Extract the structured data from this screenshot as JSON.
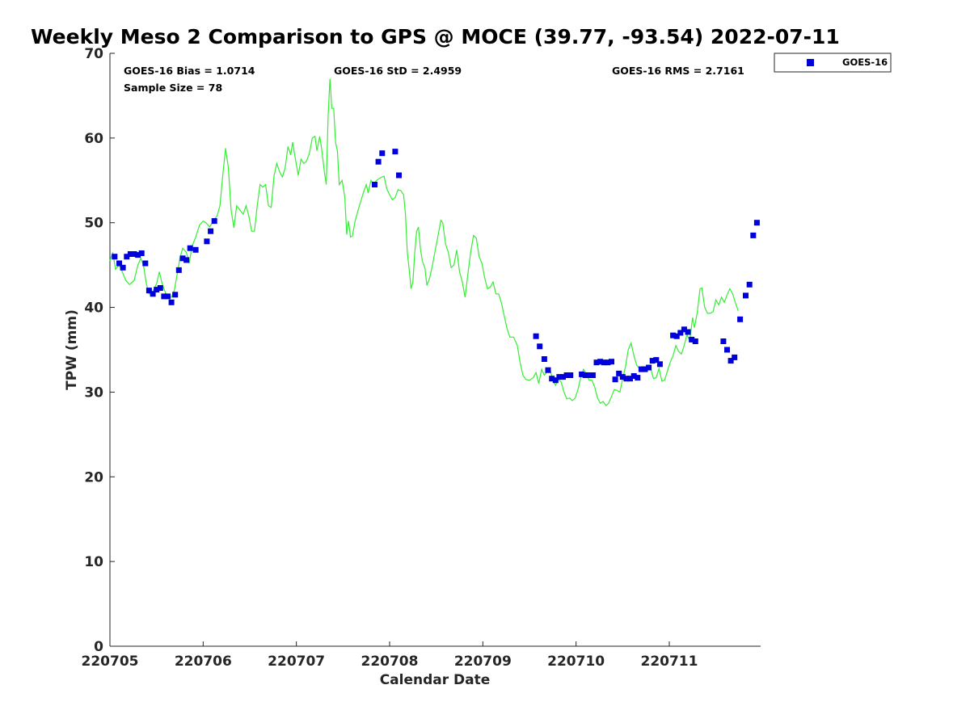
{
  "chart_data": {
    "type": "line",
    "title": "Weekly Meso 2 Comparison to GPS @ MOCE (39.77, -93.54) 2022-07-11",
    "xlabel": "Calendar Date",
    "ylabel": "TPW (mm)",
    "xlim": [
      0,
      6.98
    ],
    "ylim": [
      0,
      70
    ],
    "xticks": [
      {
        "x": 0,
        "label": "220705"
      },
      {
        "x": 1,
        "label": "220706"
      },
      {
        "x": 2,
        "label": "220707"
      },
      {
        "x": 3,
        "label": "220708"
      },
      {
        "x": 4,
        "label": "220709"
      },
      {
        "x": 5,
        "label": "220710"
      },
      {
        "x": 6,
        "label": "220711"
      }
    ],
    "yticks": [
      0,
      10,
      20,
      30,
      40,
      50,
      60,
      70
    ],
    "stats": {
      "bias": "GOES-16 Bias = 1.0714",
      "std": "GOES-16 StD = 2.4959",
      "rms": "GOES-16 RMS = 2.7161",
      "sample": "Sample Size = 78"
    },
    "legend": {
      "label": "GOES-16",
      "position": "top-right outside"
    },
    "colors": {
      "gps_line": "#33ee33",
      "goes_marker": "#0000dd"
    },
    "series": [
      {
        "name": "GPS",
        "type": "line",
        "points": [
          [
            0.0,
            45.5
          ],
          [
            0.03,
            46.5
          ],
          [
            0.06,
            44.5
          ],
          [
            0.1,
            45.0
          ],
          [
            0.14,
            44.0
          ],
          [
            0.17,
            43.2
          ],
          [
            0.21,
            42.7
          ],
          [
            0.26,
            43.2
          ],
          [
            0.3,
            45.0
          ],
          [
            0.33,
            45.8
          ],
          [
            0.36,
            45.0
          ],
          [
            0.39,
            42.8
          ],
          [
            0.42,
            41.6
          ],
          [
            0.46,
            41.9
          ],
          [
            0.5,
            42.8
          ],
          [
            0.53,
            44.2
          ],
          [
            0.56,
            42.8
          ],
          [
            0.6,
            41.6
          ],
          [
            0.63,
            41.3
          ],
          [
            0.66,
            41.2
          ],
          [
            0.69,
            42.0
          ],
          [
            0.72,
            43.8
          ],
          [
            0.75,
            45.8
          ],
          [
            0.78,
            47.0
          ],
          [
            0.82,
            46.5
          ],
          [
            0.85,
            45.2
          ],
          [
            0.88,
            47.2
          ],
          [
            0.92,
            48.3
          ],
          [
            0.96,
            49.7
          ],
          [
            1.0,
            50.2
          ],
          [
            1.03,
            50.0
          ],
          [
            1.07,
            49.5
          ],
          [
            1.12,
            50.4
          ],
          [
            1.15,
            50.8
          ],
          [
            1.18,
            52.0
          ],
          [
            1.21,
            55.5
          ],
          [
            1.24,
            58.8
          ],
          [
            1.27,
            56.5
          ],
          [
            1.3,
            51.5
          ],
          [
            1.33,
            49.4
          ],
          [
            1.36,
            52.0
          ],
          [
            1.4,
            51.4
          ],
          [
            1.43,
            51.0
          ],
          [
            1.46,
            52.0
          ],
          [
            1.49,
            50.8
          ],
          [
            1.52,
            49.0
          ],
          [
            1.55,
            49.0
          ],
          [
            1.58,
            52.0
          ],
          [
            1.61,
            54.5
          ],
          [
            1.64,
            54.2
          ],
          [
            1.67,
            54.5
          ],
          [
            1.7,
            52.0
          ],
          [
            1.73,
            51.8
          ],
          [
            1.76,
            55.5
          ],
          [
            1.79,
            57.0
          ],
          [
            1.82,
            56.0
          ],
          [
            1.85,
            55.4
          ],
          [
            1.88,
            56.5
          ],
          [
            1.91,
            59.0
          ],
          [
            1.94,
            58.0
          ],
          [
            1.96,
            59.5
          ],
          [
            1.99,
            57.5
          ],
          [
            2.02,
            55.6
          ],
          [
            2.05,
            57.5
          ],
          [
            2.08,
            57.0
          ],
          [
            2.11,
            57.3
          ],
          [
            2.14,
            58.2
          ],
          [
            2.17,
            60.0
          ],
          [
            2.2,
            60.2
          ],
          [
            2.22,
            58.5
          ],
          [
            2.25,
            60.2
          ],
          [
            2.27,
            58.8
          ],
          [
            2.3,
            56.0
          ],
          [
            2.32,
            54.5
          ],
          [
            2.34,
            62.5
          ],
          [
            2.36,
            67.0
          ],
          [
            2.38,
            63.5
          ],
          [
            2.4,
            63.5
          ],
          [
            2.42,
            59.5
          ],
          [
            2.44,
            58.5
          ],
          [
            2.46,
            54.5
          ],
          [
            2.49,
            55.0
          ],
          [
            2.52,
            53.0
          ],
          [
            2.54,
            48.6
          ],
          [
            2.56,
            50.2
          ],
          [
            2.58,
            48.3
          ],
          [
            2.6,
            48.4
          ],
          [
            2.63,
            50.2
          ],
          [
            2.66,
            51.4
          ],
          [
            2.69,
            52.5
          ],
          [
            2.72,
            53.6
          ],
          [
            2.75,
            54.5
          ],
          [
            2.77,
            53.5
          ],
          [
            2.8,
            55.0
          ],
          [
            2.83,
            54.5
          ],
          [
            2.86,
            55.0
          ],
          [
            2.9,
            55.3
          ],
          [
            2.94,
            55.5
          ],
          [
            2.97,
            54.0
          ],
          [
            3.0,
            53.3
          ],
          [
            3.03,
            52.7
          ],
          [
            3.06,
            53.0
          ],
          [
            3.09,
            53.9
          ],
          [
            3.12,
            53.8
          ],
          [
            3.15,
            53.3
          ],
          [
            3.17,
            51.0
          ],
          [
            3.19,
            46.5
          ],
          [
            3.21,
            44.5
          ],
          [
            3.23,
            42.2
          ],
          [
            3.25,
            43.0
          ],
          [
            3.27,
            46.5
          ],
          [
            3.29,
            49.0
          ],
          [
            3.31,
            49.5
          ],
          [
            3.33,
            47.0
          ],
          [
            3.35,
            45.5
          ],
          [
            3.38,
            44.6
          ],
          [
            3.4,
            42.6
          ],
          [
            3.43,
            43.5
          ],
          [
            3.46,
            45.0
          ],
          [
            3.49,
            46.8
          ],
          [
            3.52,
            48.5
          ],
          [
            3.55,
            50.3
          ],
          [
            3.57,
            50.0
          ],
          [
            3.6,
            47.5
          ],
          [
            3.63,
            46.5
          ],
          [
            3.66,
            44.7
          ],
          [
            3.69,
            45.0
          ],
          [
            3.72,
            46.8
          ],
          [
            3.75,
            44.2
          ],
          [
            3.78,
            43.0
          ],
          [
            3.81,
            41.2
          ],
          [
            3.84,
            44.0
          ],
          [
            3.87,
            46.5
          ],
          [
            3.9,
            48.5
          ],
          [
            3.93,
            48.2
          ],
          [
            3.96,
            46.0
          ],
          [
            3.99,
            45.2
          ],
          [
            4.02,
            43.5
          ],
          [
            4.05,
            42.2
          ],
          [
            4.08,
            42.4
          ],
          [
            4.11,
            43.0
          ],
          [
            4.14,
            41.6
          ],
          [
            4.17,
            41.6
          ],
          [
            4.2,
            40.5
          ],
          [
            4.23,
            39.0
          ],
          [
            4.26,
            37.5
          ],
          [
            4.29,
            36.5
          ],
          [
            4.33,
            36.5
          ],
          [
            4.37,
            35.5
          ],
          [
            4.4,
            33.5
          ],
          [
            4.43,
            32.0
          ],
          [
            4.46,
            31.5
          ],
          [
            4.5,
            31.4
          ],
          [
            4.54,
            31.7
          ],
          [
            4.57,
            32.3
          ],
          [
            4.6,
            31.0
          ],
          [
            4.63,
            32.7
          ],
          [
            4.66,
            32.0
          ],
          [
            4.69,
            32.4
          ],
          [
            4.72,
            32.7
          ],
          [
            4.75,
            31.4
          ],
          [
            4.78,
            30.8
          ],
          [
            4.81,
            31.5
          ],
          [
            4.84,
            31.2
          ],
          [
            4.87,
            30.0
          ],
          [
            4.9,
            29.2
          ],
          [
            4.93,
            29.3
          ],
          [
            4.96,
            29.0
          ],
          [
            4.99,
            29.3
          ],
          [
            5.02,
            30.3
          ],
          [
            5.05,
            31.7
          ],
          [
            5.08,
            32.7
          ],
          [
            5.11,
            32.2
          ],
          [
            5.14,
            31.4
          ],
          [
            5.17,
            31.4
          ],
          [
            5.2,
            30.6
          ],
          [
            5.23,
            29.3
          ],
          [
            5.26,
            28.7
          ],
          [
            5.29,
            28.9
          ],
          [
            5.32,
            28.4
          ],
          [
            5.35,
            28.7
          ],
          [
            5.38,
            29.5
          ],
          [
            5.41,
            30.3
          ],
          [
            5.44,
            30.2
          ],
          [
            5.47,
            30.0
          ],
          [
            5.5,
            31.6
          ],
          [
            5.53,
            33.0
          ],
          [
            5.56,
            35.0
          ],
          [
            5.59,
            35.8
          ],
          [
            5.62,
            34.3
          ],
          [
            5.65,
            33.2
          ],
          [
            5.68,
            32.8
          ],
          [
            5.72,
            33.0
          ],
          [
            5.76,
            33.0
          ],
          [
            5.8,
            32.8
          ],
          [
            5.83,
            31.6
          ],
          [
            5.86,
            31.7
          ],
          [
            5.89,
            32.8
          ],
          [
            5.92,
            31.3
          ],
          [
            5.95,
            31.4
          ],
          [
            5.98,
            32.5
          ],
          [
            6.01,
            33.5
          ],
          [
            6.04,
            34.3
          ],
          [
            6.07,
            35.5
          ],
          [
            6.1,
            34.8
          ],
          [
            6.13,
            34.5
          ],
          [
            6.16,
            35.5
          ],
          [
            6.19,
            36.8
          ],
          [
            6.22,
            36.0
          ],
          [
            6.25,
            38.8
          ],
          [
            6.27,
            37.6
          ],
          [
            6.3,
            39.4
          ],
          [
            6.33,
            42.2
          ],
          [
            6.35,
            42.3
          ],
          [
            6.38,
            40.0
          ],
          [
            6.41,
            39.3
          ],
          [
            6.44,
            39.3
          ],
          [
            6.47,
            39.5
          ],
          [
            6.5,
            40.9
          ],
          [
            6.53,
            40.3
          ],
          [
            6.56,
            41.2
          ],
          [
            6.59,
            40.6
          ],
          [
            6.62,
            41.5
          ],
          [
            6.65,
            42.2
          ],
          [
            6.68,
            41.6
          ],
          [
            6.71,
            40.5
          ],
          [
            6.74,
            39.6
          ]
        ]
      },
      {
        "name": "GOES-16",
        "type": "scatter",
        "points": [
          [
            0.05,
            46.0
          ],
          [
            0.1,
            45.2
          ],
          [
            0.14,
            44.7
          ],
          [
            0.18,
            46.0
          ],
          [
            0.22,
            46.3
          ],
          [
            0.26,
            46.3
          ],
          [
            0.3,
            46.2
          ],
          [
            0.34,
            46.4
          ],
          [
            0.38,
            45.2
          ],
          [
            0.42,
            42.0
          ],
          [
            0.46,
            41.6
          ],
          [
            0.5,
            42.1
          ],
          [
            0.54,
            42.3
          ],
          [
            0.58,
            41.3
          ],
          [
            0.62,
            41.3
          ],
          [
            0.66,
            40.6
          ],
          [
            0.7,
            41.5
          ],
          [
            0.74,
            44.4
          ],
          [
            0.78,
            45.8
          ],
          [
            0.82,
            45.6
          ],
          [
            0.86,
            47.0
          ],
          [
            0.92,
            46.8
          ],
          [
            1.04,
            47.8
          ],
          [
            1.08,
            49.0
          ],
          [
            1.12,
            50.2
          ],
          [
            2.84,
            54.5
          ],
          [
            2.88,
            57.2
          ],
          [
            2.92,
            58.2
          ],
          [
            3.06,
            58.4
          ],
          [
            3.1,
            55.6
          ],
          [
            4.57,
            36.6
          ],
          [
            4.61,
            35.4
          ],
          [
            4.66,
            33.9
          ],
          [
            4.7,
            32.6
          ],
          [
            4.74,
            31.6
          ],
          [
            4.78,
            31.4
          ],
          [
            4.82,
            31.8
          ],
          [
            4.86,
            31.8
          ],
          [
            4.9,
            32.0
          ],
          [
            4.94,
            32.0
          ],
          [
            5.06,
            32.1
          ],
          [
            5.1,
            32.0
          ],
          [
            5.14,
            32.0
          ],
          [
            5.18,
            32.0
          ],
          [
            5.22,
            33.5
          ],
          [
            5.26,
            33.6
          ],
          [
            5.3,
            33.5
          ],
          [
            5.34,
            33.5
          ],
          [
            5.38,
            33.6
          ],
          [
            5.42,
            31.5
          ],
          [
            5.46,
            32.2
          ],
          [
            5.5,
            31.8
          ],
          [
            5.54,
            31.6
          ],
          [
            5.58,
            31.6
          ],
          [
            5.62,
            31.9
          ],
          [
            5.66,
            31.7
          ],
          [
            5.7,
            32.7
          ],
          [
            5.74,
            32.7
          ],
          [
            5.78,
            32.9
          ],
          [
            5.82,
            33.7
          ],
          [
            5.86,
            33.8
          ],
          [
            5.9,
            33.3
          ],
          [
            6.04,
            36.7
          ],
          [
            6.08,
            36.6
          ],
          [
            6.12,
            37.0
          ],
          [
            6.16,
            37.4
          ],
          [
            6.2,
            37.1
          ],
          [
            6.24,
            36.2
          ],
          [
            6.28,
            36.0
          ],
          [
            6.58,
            36.0
          ],
          [
            6.62,
            35.0
          ],
          [
            6.66,
            33.7
          ],
          [
            6.7,
            34.1
          ],
          [
            6.76,
            38.6
          ],
          [
            6.82,
            41.4
          ],
          [
            6.86,
            42.7
          ],
          [
            6.9,
            48.5
          ],
          [
            6.94,
            50.0
          ]
        ]
      }
    ]
  }
}
